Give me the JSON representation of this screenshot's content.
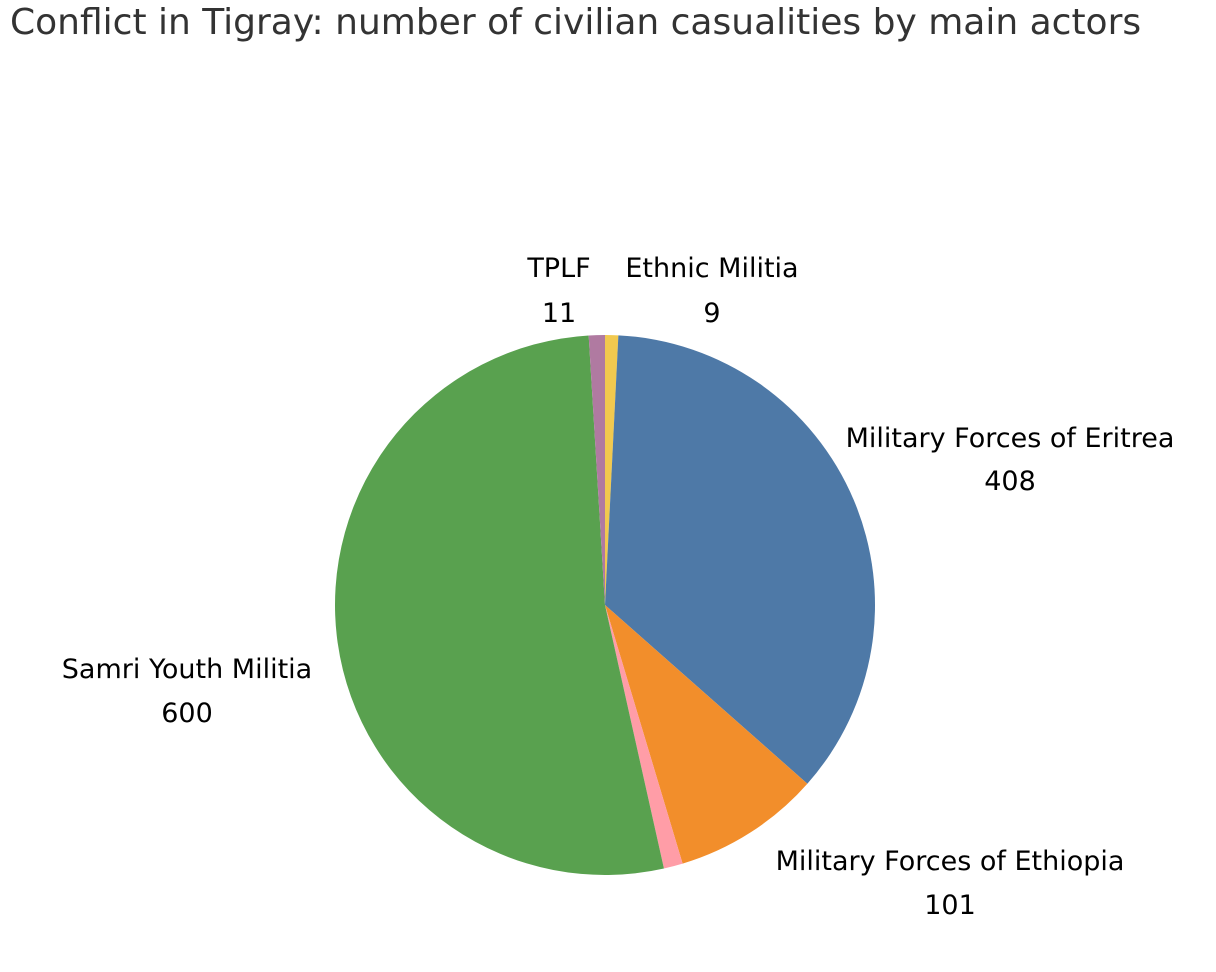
{
  "chart_data": {
    "type": "pie",
    "title": "Conflict in Tigray: number of civilian casualities by main actors",
    "slices": [
      {
        "label": "Ethnic Militia",
        "value": 9,
        "color": "#F1C94F"
      },
      {
        "label": "Military Forces of Eritrea",
        "value": 408,
        "color": "#4E79A7"
      },
      {
        "label": "Military Forces of Ethiopia",
        "value": 101,
        "color": "#F28E2B"
      },
      {
        "label": "",
        "value": 13,
        "color": "#FF9DA7"
      },
      {
        "label": "Samri Youth Militia",
        "value": 600,
        "color": "#59A14F"
      },
      {
        "label": "TPLF",
        "value": 11,
        "color": "#B07AA1"
      }
    ],
    "start_angle": "12 o'clock",
    "direction": "clockwise",
    "legend": "none"
  }
}
